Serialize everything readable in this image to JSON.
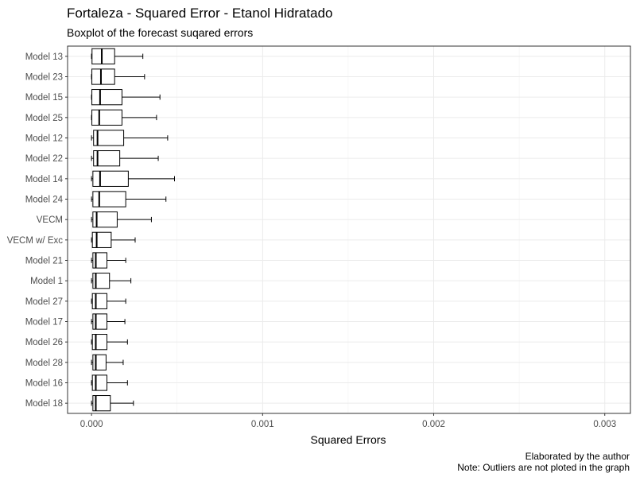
{
  "chart_data": {
    "type": "boxplot",
    "title": "Fortaleza - Squared Error - Etanol Hidratado",
    "subtitle": "Boxplot of the forecast suqared errors",
    "xlabel": "Squared Errors",
    "ylabel": "",
    "xlim": [
      -0.00014,
      0.00315
    ],
    "x_ticks": [
      0.0,
      0.001,
      0.002,
      0.003
    ],
    "x_tick_labels": [
      "0.000",
      "0.001",
      "0.002",
      "0.003"
    ],
    "grid": true,
    "captions": [
      "Elaborated by the author",
      "Note: Outliers are not ploted in the graph"
    ],
    "categories": [
      "Model 13",
      "Model 23",
      "Model 15",
      "Model 25",
      "Model 12",
      "Model 22",
      "Model 14",
      "Model 24",
      "VECM",
      "VECM w/ Exc",
      "Model 21",
      "Model 1",
      "Model 27",
      "Model 17",
      "Model 26",
      "Model 28",
      "Model 16",
      "Model 18"
    ],
    "boxes": [
      {
        "min": 0.0,
        "q1": 3e-06,
        "median": 6e-05,
        "q3": 0.000135,
        "max": 0.0003
      },
      {
        "min": 0.0,
        "q1": 2e-06,
        "median": 5.5e-05,
        "q3": 0.000135,
        "max": 0.00031
      },
      {
        "min": 0.0,
        "q1": 2e-06,
        "median": 5e-05,
        "q3": 0.000178,
        "max": 0.0004
      },
      {
        "min": 0.0,
        "q1": 2e-06,
        "median": 4.5e-05,
        "q3": 0.000178,
        "max": 0.00038
      },
      {
        "min": 0.0,
        "q1": 1.2e-05,
        "median": 3.5e-05,
        "q3": 0.000188,
        "max": 0.000445
      },
      {
        "min": 0.0,
        "q1": 1.2e-05,
        "median": 3.5e-05,
        "q3": 0.000165,
        "max": 0.00039
      },
      {
        "min": 0.0,
        "q1": 8e-06,
        "median": 5e-05,
        "q3": 0.000215,
        "max": 0.000485
      },
      {
        "min": 0.0,
        "q1": 8e-06,
        "median": 4.5e-05,
        "q3": 0.0002,
        "max": 0.000435
      },
      {
        "min": 0.0,
        "q1": 8e-06,
        "median": 3e-05,
        "q3": 0.00015,
        "max": 0.00035
      },
      {
        "min": 0.0,
        "q1": 5e-06,
        "median": 3e-05,
        "q3": 0.000115,
        "max": 0.000255
      },
      {
        "min": 0.0,
        "q1": 8e-06,
        "median": 2.5e-05,
        "q3": 9e-05,
        "max": 0.0002
      },
      {
        "min": 0.0,
        "q1": 8e-06,
        "median": 2.5e-05,
        "q3": 0.000105,
        "max": 0.00023
      },
      {
        "min": 0.0,
        "q1": 5e-06,
        "median": 2.5e-05,
        "q3": 9e-05,
        "max": 0.0002
      },
      {
        "min": 0.0,
        "q1": 8e-06,
        "median": 2.5e-05,
        "q3": 9e-05,
        "max": 0.000195
      },
      {
        "min": 0.0,
        "q1": 5e-06,
        "median": 2.5e-05,
        "q3": 9e-05,
        "max": 0.00021
      },
      {
        "min": 0.0,
        "q1": 8e-06,
        "median": 2.5e-05,
        "q3": 8.5e-05,
        "max": 0.000185
      },
      {
        "min": 0.0,
        "q1": 5e-06,
        "median": 2.5e-05,
        "q3": 9e-05,
        "max": 0.00021
      },
      {
        "min": 0.0,
        "q1": 8e-06,
        "median": 2.5e-05,
        "q3": 0.00011,
        "max": 0.000245
      }
    ]
  }
}
